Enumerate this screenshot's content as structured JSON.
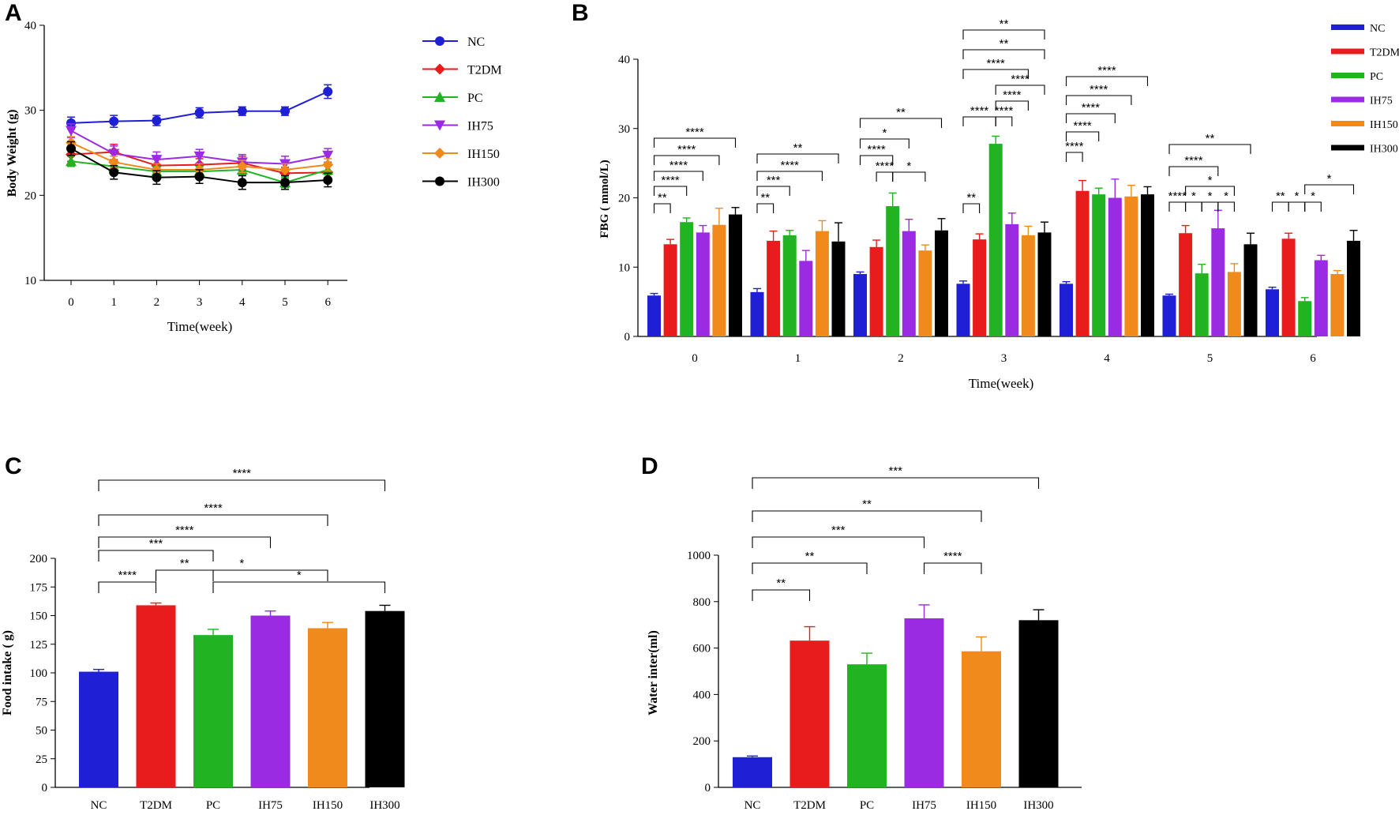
{
  "chart_data": [
    {
      "panel": "A",
      "type": "line",
      "xlabel": "Time(week)",
      "ylabel": "Body Weight (g)",
      "ylim": [
        10,
        40
      ],
      "yticks": [
        10,
        20,
        30,
        40
      ],
      "x": [
        0,
        1,
        2,
        3,
        4,
        5,
        6
      ],
      "series": [
        {
          "name": "NC",
          "color": "#1f1fd6",
          "marker": "circle",
          "values": [
            28.5,
            28.7,
            28.8,
            29.7,
            29.9,
            29.9,
            32.2
          ],
          "errors": [
            0.7,
            0.7,
            0.6,
            0.6,
            0.5,
            0.5,
            0.8
          ]
        },
        {
          "name": "T2DM",
          "color": "#e81c1c",
          "marker": "diamond",
          "values": [
            24.8,
            25.1,
            23.5,
            23.6,
            23.8,
            22.6,
            22.7
          ],
          "errors": [
            0.8,
            0.9,
            0.8,
            0.7,
            0.8,
            0.7,
            0.8
          ]
        },
        {
          "name": "PC",
          "color": "#22b322",
          "marker": "triangle-up",
          "values": [
            24.0,
            23.4,
            22.8,
            22.8,
            23.0,
            21.5,
            23.0
          ],
          "errors": [
            0.6,
            0.6,
            0.6,
            0.6,
            0.6,
            0.6,
            0.6
          ]
        },
        {
          "name": "IH75",
          "color": "#9a2be2",
          "marker": "triangle-down",
          "values": [
            27.6,
            24.9,
            24.2,
            24.6,
            23.9,
            23.7,
            24.7
          ],
          "errors": [
            0.8,
            0.9,
            0.9,
            0.8,
            0.9,
            0.9,
            0.8
          ]
        },
        {
          "name": "IH150",
          "color": "#f08a1c",
          "marker": "diamond",
          "values": [
            26.2,
            23.9,
            23.0,
            23.0,
            23.4,
            23.0,
            23.6
          ],
          "errors": [
            0.7,
            0.7,
            0.7,
            0.7,
            0.7,
            0.7,
            0.7
          ]
        },
        {
          "name": "IH300",
          "color": "#000000",
          "marker": "circle",
          "values": [
            25.5,
            22.7,
            22.1,
            22.2,
            21.5,
            21.5,
            21.8
          ],
          "errors": [
            0.8,
            0.8,
            0.8,
            0.8,
            0.8,
            0.8,
            0.8
          ]
        }
      ]
    },
    {
      "panel": "B",
      "type": "bar",
      "xlabel": "Time(week)",
      "ylabel": "FBG ( mmol/L)",
      "ylim": [
        0,
        40
      ],
      "yticks": [
        0,
        10,
        20,
        30,
        40
      ],
      "categories": [
        "0",
        "1",
        "2",
        "3",
        "4",
        "5",
        "6"
      ],
      "series": [
        {
          "name": "NC",
          "color": "#1f1fd6",
          "values": [
            5.9,
            6.4,
            9.0,
            7.6,
            7.6,
            5.9,
            6.8
          ],
          "errors": [
            0.3,
            0.5,
            0.3,
            0.4,
            0.3,
            0.2,
            0.3
          ]
        },
        {
          "name": "T2DM",
          "color": "#e81c1c",
          "values": [
            13.3,
            13.8,
            12.9,
            14.0,
            21.0,
            14.9,
            14.1
          ],
          "errors": [
            0.7,
            1.4,
            1.0,
            0.8,
            1.5,
            1.1,
            0.8
          ]
        },
        {
          "name": "PC",
          "color": "#22b322",
          "values": [
            16.5,
            14.6,
            18.8,
            27.8,
            20.5,
            9.1,
            5.1
          ],
          "errors": [
            0.6,
            0.7,
            1.9,
            1.1,
            0.9,
            1.3,
            0.5
          ]
        },
        {
          "name": "IH75",
          "color": "#9a2be2",
          "values": [
            15.0,
            10.9,
            15.2,
            16.2,
            20.0,
            15.6,
            11.0
          ],
          "errors": [
            1.0,
            1.5,
            1.7,
            1.6,
            2.7,
            2.6,
            0.7
          ]
        },
        {
          "name": "IH150",
          "color": "#f08a1c",
          "values": [
            16.1,
            15.2,
            12.4,
            14.6,
            20.2,
            9.3,
            9.0
          ],
          "errors": [
            2.4,
            1.5,
            0.8,
            1.3,
            1.6,
            1.2,
            0.5
          ]
        },
        {
          "name": "IH300",
          "color": "#000000",
          "values": [
            17.6,
            13.7,
            15.3,
            15.0,
            20.5,
            13.3,
            13.8
          ],
          "errors": [
            1.0,
            2.7,
            1.7,
            1.5,
            1.1,
            1.6,
            1.5
          ]
        }
      ],
      "annotations": [
        {
          "week": 0,
          "from": 0,
          "to": 1,
          "label": "**"
        },
        {
          "week": 0,
          "from": 0,
          "to": 2,
          "label": "****"
        },
        {
          "week": 0,
          "from": 0,
          "to": 3,
          "label": "****"
        },
        {
          "week": 0,
          "from": 0,
          "to": 4,
          "label": "****"
        },
        {
          "week": 0,
          "from": 0,
          "to": 5,
          "label": "****"
        },
        {
          "week": 1,
          "from": 0,
          "to": 1,
          "label": "**"
        },
        {
          "week": 1,
          "from": 0,
          "to": 2,
          "label": "***"
        },
        {
          "week": 1,
          "from": 0,
          "to": 4,
          "label": "****"
        },
        {
          "week": 1,
          "from": 0,
          "to": 5,
          "label": "**"
        },
        {
          "week": 2,
          "from": 1,
          "to": 2,
          "label": "****"
        },
        {
          "week": 2,
          "from": 2,
          "to": 4,
          "label": "*"
        },
        {
          "week": 2,
          "from": 0,
          "to": 2,
          "label": "****"
        },
        {
          "week": 2,
          "from": 0,
          "to": 3,
          "label": "*"
        },
        {
          "week": 2,
          "from": 0,
          "to": 5,
          "label": "**"
        },
        {
          "week": 3,
          "from": 0,
          "to": 1,
          "label": "**"
        },
        {
          "week": 3,
          "from": 0,
          "to": 2,
          "label": "****"
        },
        {
          "week": 3,
          "from": 2,
          "to": 3,
          "label": "****"
        },
        {
          "week": 3,
          "from": 2,
          "to": 4,
          "label": "****"
        },
        {
          "week": 3,
          "from": 2,
          "to": 5,
          "label": "****"
        },
        {
          "week": 3,
          "from": 0,
          "to": 4,
          "label": "****"
        },
        {
          "week": 3,
          "from": 0,
          "to": 5,
          "label": "**"
        },
        {
          "week": 3,
          "from": 0,
          "to": 5,
          "label": "**"
        },
        {
          "week": 4,
          "from": 0,
          "to": 1,
          "label": "****"
        },
        {
          "week": 4,
          "from": 0,
          "to": 2,
          "label": "****"
        },
        {
          "week": 4,
          "from": 0,
          "to": 3,
          "label": "****"
        },
        {
          "week": 4,
          "from": 0,
          "to": 4,
          "label": "****"
        },
        {
          "week": 4,
          "from": 0,
          "to": 5,
          "label": "****"
        },
        {
          "week": 5,
          "from": 0,
          "to": 1,
          "label": "****"
        },
        {
          "week": 5,
          "from": 1,
          "to": 2,
          "label": "*"
        },
        {
          "week": 5,
          "from": 2,
          "to": 3,
          "label": "*"
        },
        {
          "week": 5,
          "from": 3,
          "to": 4,
          "label": "*"
        },
        {
          "week": 5,
          "from": 1,
          "to": 4,
          "label": "*"
        },
        {
          "week": 5,
          "from": 0,
          "to": 3,
          "label": "****"
        },
        {
          "week": 5,
          "from": 0,
          "to": 5,
          "label": "**"
        },
        {
          "week": 6,
          "from": 0,
          "to": 1,
          "label": "**"
        },
        {
          "week": 6,
          "from": 1,
          "to": 2,
          "label": "*"
        },
        {
          "week": 6,
          "from": 2,
          "to": 3,
          "label": "*"
        },
        {
          "week": 6,
          "from": 2,
          "to": 5,
          "label": "*"
        }
      ]
    },
    {
      "panel": "C",
      "type": "bar",
      "xlabel": "",
      "ylabel": "Food intake ( g)",
      "ylim": [
        0,
        200
      ],
      "yticks": [
        0,
        25,
        50,
        75,
        100,
        125,
        150,
        175,
        200
      ],
      "categories": [
        "NC",
        "T2DM",
        "PC",
        "IH75",
        "IH150",
        "IH300"
      ],
      "colors": [
        "#1f1fd6",
        "#e81c1c",
        "#22b322",
        "#9a2be2",
        "#f08a1c",
        "#000000"
      ],
      "values": [
        101,
        159,
        133,
        150,
        139,
        154
      ],
      "errors": [
        2,
        2,
        5,
        4,
        5,
        5
      ],
      "annotations": [
        {
          "from": 0,
          "to": 1,
          "label": "****"
        },
        {
          "from": 1,
          "to": 2,
          "label": "**"
        },
        {
          "from": 2,
          "to": 5,
          "label": "*"
        },
        {
          "from": 1,
          "to": 4,
          "label": "*"
        },
        {
          "from": 0,
          "to": 2,
          "label": "***"
        },
        {
          "from": 0,
          "to": 3,
          "label": "****"
        },
        {
          "from": 0,
          "to": 4,
          "label": "****"
        },
        {
          "from": 0,
          "to": 5,
          "label": "****"
        }
      ]
    },
    {
      "panel": "D",
      "type": "bar",
      "xlabel": "",
      "ylabel": "Water inter(ml)",
      "ylim": [
        0,
        1000
      ],
      "yticks": [
        0,
        200,
        400,
        600,
        800,
        1000
      ],
      "categories": [
        "NC",
        "T2DM",
        "PC",
        "IH75",
        "IH150",
        "IH300"
      ],
      "colors": [
        "#1f1fd6",
        "#e81c1c",
        "#22b322",
        "#9a2be2",
        "#f08a1c",
        "#000000"
      ],
      "values": [
        130,
        632,
        530,
        728,
        586,
        720
      ],
      "errors": [
        5,
        60,
        48,
        58,
        62,
        45
      ],
      "annotations": [
        {
          "from": 0,
          "to": 1,
          "label": "**"
        },
        {
          "from": 0,
          "to": 2,
          "label": "**"
        },
        {
          "from": 3,
          "to": 4,
          "label": "****"
        },
        {
          "from": 0,
          "to": 3,
          "label": "***"
        },
        {
          "from": 0,
          "to": 4,
          "label": "**"
        },
        {
          "from": 0,
          "to": 5,
          "label": "***"
        }
      ]
    }
  ]
}
